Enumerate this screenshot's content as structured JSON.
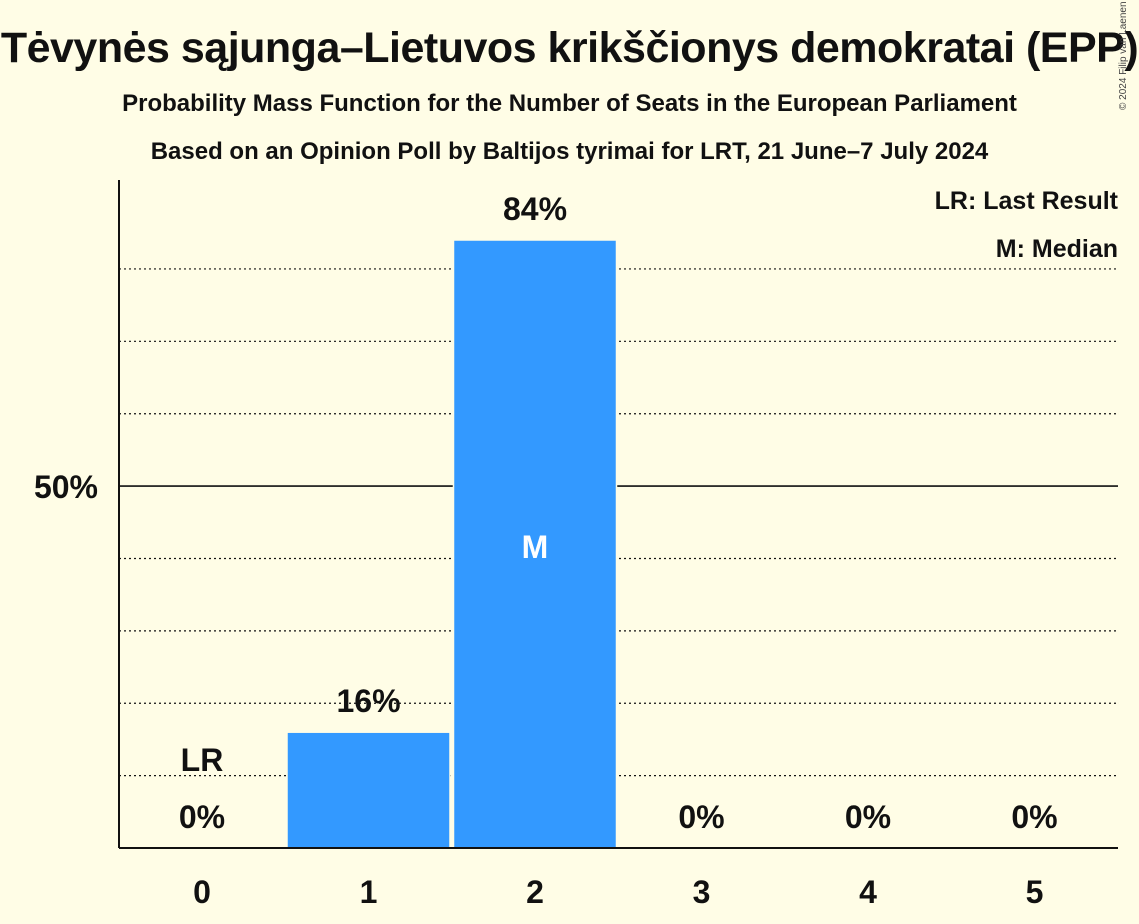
{
  "title": "Tėvynės sąjunga–Lietuvos krikščionys demokratai (EPP)",
  "subtitle": "Probability Mass Function for the Number of Seats in the European Parliament",
  "subtitle2": "Based on an Opinion Poll by Baltijos tyrimai for LRT, 21 June–7 July 2024",
  "copyright": "© 2024 Filip van Laenen",
  "colors": {
    "bar": "#3399FF",
    "background": "#FFFDE6",
    "text": "#111111"
  },
  "chart_data": {
    "type": "bar",
    "categories": [
      "0",
      "1",
      "2",
      "3",
      "4",
      "5"
    ],
    "values": [
      0,
      16,
      84,
      0,
      0,
      0
    ],
    "value_labels": [
      "0%",
      "16%",
      "84%",
      "0%",
      "0%",
      "0%"
    ],
    "ylim": [
      0,
      92
    ],
    "yticks": [
      {
        "value": 50,
        "label": "50%"
      }
    ],
    "gridlines": [
      10,
      20,
      30,
      40,
      60,
      70,
      80
    ],
    "last_result": {
      "category": "0",
      "label": "LR"
    },
    "median": {
      "category": "2",
      "label": "M"
    },
    "legend": [
      "LR: Last Result",
      "M: Median"
    ],
    "legend_position": "top-right"
  }
}
